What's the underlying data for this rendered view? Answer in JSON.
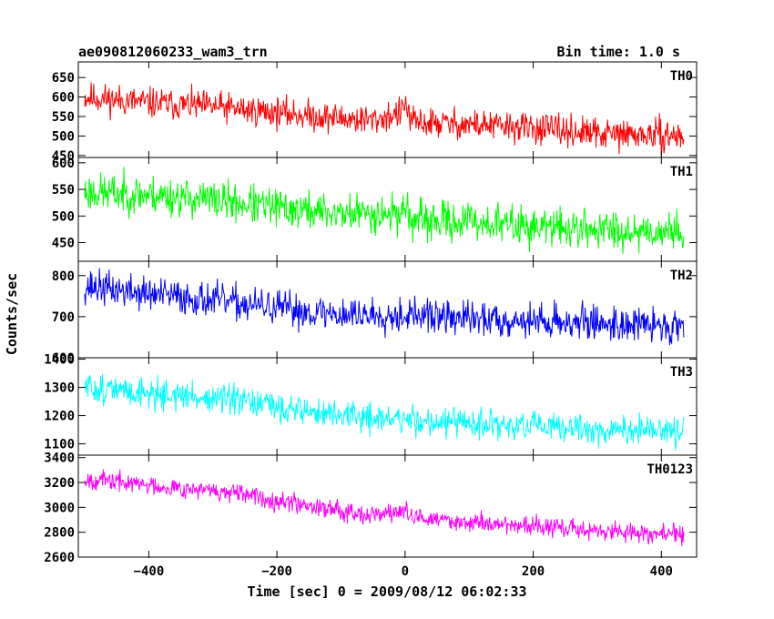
{
  "chart_data": {
    "type": "line",
    "title": "ae090812060233_wam3_trn",
    "subtitle": "Bin time: 1.0 s",
    "xlabel": "Time [sec] 0 = 2009/08/12 06:02:33",
    "ylabel": "Counts/sec",
    "xlim": [
      -510,
      455
    ],
    "x_range": [
      -500,
      435
    ],
    "xticks": [
      -400,
      -200,
      0,
      200,
      400
    ],
    "xtick_labels": [
      "−400",
      "−200",
      "0",
      "200",
      "400"
    ],
    "panels": [
      {
        "name": "TH0",
        "color": "#ff0000",
        "ylim": [
          445,
          690
        ],
        "yticks": [
          450,
          500,
          550,
          600,
          650
        ],
        "ytick_labels": [
          "450",
          "500",
          "550",
          "600",
          "650"
        ],
        "trend": [
          [
            -500,
            600
          ],
          [
            -400,
            585
          ],
          [
            -300,
            575
          ],
          [
            -200,
            560
          ],
          [
            -100,
            545
          ],
          [
            -50,
            540
          ],
          [
            -5,
            560
          ],
          [
            0,
            585
          ],
          [
            10,
            535
          ],
          [
            100,
            530
          ],
          [
            200,
            520
          ],
          [
            300,
            505
          ],
          [
            435,
            500
          ]
        ],
        "noise": 28,
        "seed": 11
      },
      {
        "name": "TH1",
        "color": "#00ff00",
        "ylim": [
          415,
          610
        ],
        "yticks": [
          450,
          500,
          550,
          600
        ],
        "ytick_labels": [
          "450",
          "500",
          "550",
          "600"
        ],
        "trend": [
          [
            -500,
            545
          ],
          [
            -400,
            540
          ],
          [
            -300,
            530
          ],
          [
            -200,
            515
          ],
          [
            -100,
            505
          ],
          [
            -5,
            505
          ],
          [
            0,
            525
          ],
          [
            10,
            490
          ],
          [
            100,
            490
          ],
          [
            200,
            480
          ],
          [
            300,
            475
          ],
          [
            435,
            470
          ]
        ],
        "noise": 26,
        "seed": 23
      },
      {
        "name": "TH2",
        "color": "#0000ff",
        "ylim": [
          600,
          835
        ],
        "yticks": [
          600,
          700,
          800
        ],
        "ytick_labels": [
          "600",
          "700",
          "800"
        ],
        "trend": [
          [
            -500,
            775
          ],
          [
            -400,
            755
          ],
          [
            -300,
            740
          ],
          [
            -200,
            720
          ],
          [
            -100,
            705
          ],
          [
            0,
            705
          ],
          [
            100,
            695
          ],
          [
            200,
            690
          ],
          [
            300,
            685
          ],
          [
            435,
            675
          ]
        ],
        "noise": 30,
        "seed": 37
      },
      {
        "name": "TH3",
        "color": "#00ffff",
        "ylim": [
          1060,
          1405
        ],
        "yticks": [
          1100,
          1200,
          1300,
          1400
        ],
        "ytick_labels": [
          "1100",
          "1200",
          "1300",
          "1400"
        ],
        "trend": [
          [
            -500,
            1300
          ],
          [
            -400,
            1280
          ],
          [
            -300,
            1260
          ],
          [
            -200,
            1230
          ],
          [
            -100,
            1200
          ],
          [
            0,
            1185
          ],
          [
            100,
            1170
          ],
          [
            200,
            1160
          ],
          [
            300,
            1150
          ],
          [
            435,
            1140
          ]
        ],
        "noise": 38,
        "seed": 51
      },
      {
        "name": "TH0123",
        "color": "#ff00ff",
        "ylim": [
          2600,
          3420
        ],
        "yticks": [
          2600,
          2800,
          3000,
          3200,
          3400
        ],
        "ytick_labels": [
          "2600",
          "2800",
          "3000",
          "3200",
          "3400"
        ],
        "trend": [
          [
            -500,
            3230
          ],
          [
            -400,
            3180
          ],
          [
            -300,
            3130
          ],
          [
            -200,
            3060
          ],
          [
            -100,
            2980
          ],
          [
            -50,
            2940
          ],
          [
            0,
            2970
          ],
          [
            10,
            2920
          ],
          [
            100,
            2880
          ],
          [
            200,
            2850
          ],
          [
            300,
            2810
          ],
          [
            435,
            2780
          ]
        ],
        "noise": 55,
        "seed": 67
      }
    ]
  }
}
